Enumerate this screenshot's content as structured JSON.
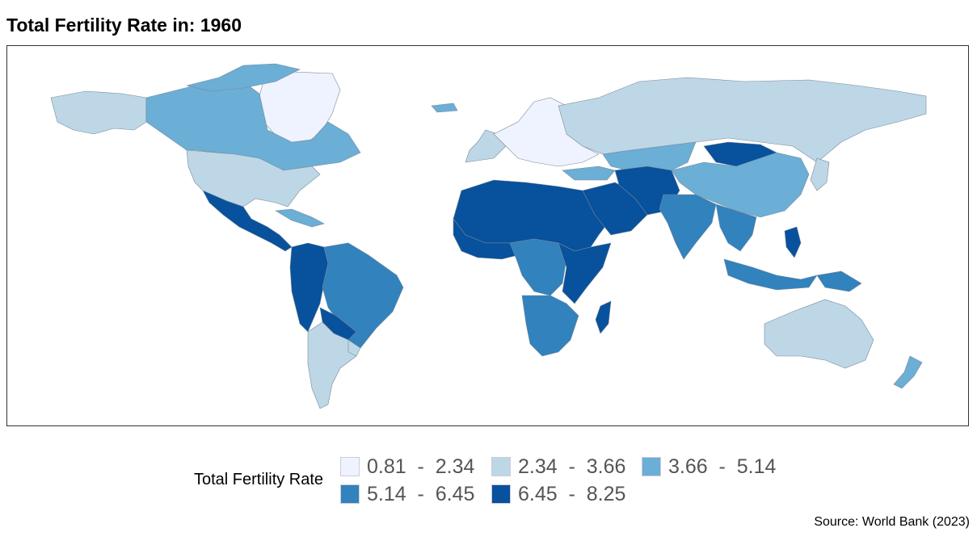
{
  "title": "Total Fertility Rate in: 1960",
  "source": "Source: World Bank (2023)",
  "legend": {
    "title": "Total Fertility Rate",
    "items": [
      {
        "label": "0.81  -  2.34",
        "color": "#eff3ff"
      },
      {
        "label": "2.34  -  3.66",
        "color": "#bdd7e7"
      },
      {
        "label": "3.66  -  5.14",
        "color": "#6baed6"
      },
      {
        "label": "5.14  -  6.45",
        "color": "#3182bd"
      },
      {
        "label": "6.45  -  8.25",
        "color": "#08519c"
      }
    ]
  },
  "map": {
    "classes": {
      "c1": "#eff3ff",
      "c2": "#bdd7e7",
      "c3": "#6baed6",
      "c4": "#3182bd",
      "c5": "#08519c"
    }
  }
}
